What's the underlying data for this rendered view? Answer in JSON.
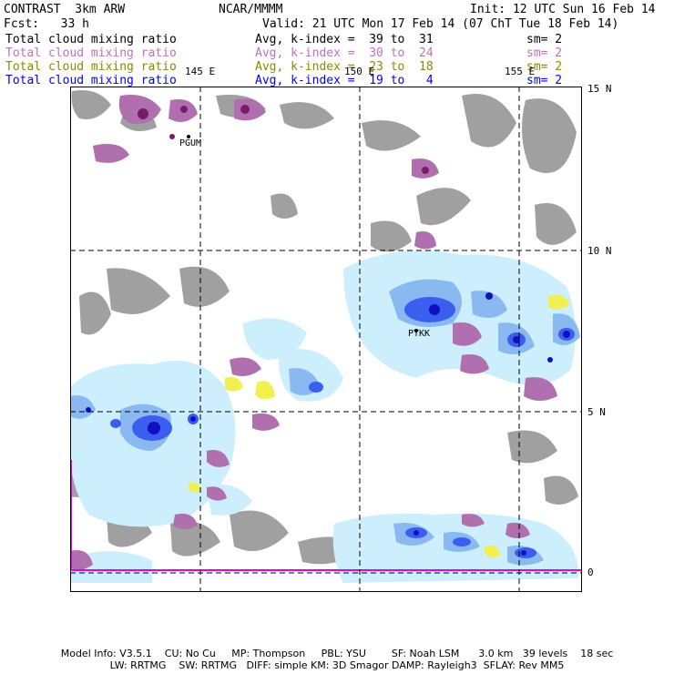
{
  "header": {
    "model": "CONTRAST  3km ARW",
    "forecast": "Fcst:   33 h",
    "org": "NCAR/MMMM",
    "init": "Init: 12 UTC Sun 16 Feb 14",
    "valid": "Valid: 21 UTC Mon 17 Feb 14 (07 ChT Tue 18 Feb 14)"
  },
  "legend": [
    {
      "field": "Total cloud mixing ratio",
      "range": "Avg, k-index =  39 to  31",
      "smooth": "sm= 2",
      "color": "#000000"
    },
    {
      "field": "Total cloud mixing ratio",
      "range": "Avg, k-index =  30 to  24",
      "smooth": "sm= 2",
      "color": "#c070c0"
    },
    {
      "field": "Total cloud mixing ratio",
      "range": "Avg, k-index =  23 to  18",
      "smooth": "sm= 2",
      "color": "#8a8a00"
    },
    {
      "field": "Total cloud mixing ratio",
      "range": "Avg, k-index =  19 to   4",
      "smooth": "sm= 2",
      "color": "#0000ff"
    }
  ],
  "map": {
    "lon_labels": [
      "145 E",
      "150 E",
      "155 E"
    ],
    "lat_labels": [
      "15 N",
      "10 N",
      "5 N",
      "0"
    ],
    "stations": [
      "PGUM",
      "PTKK"
    ]
  },
  "colors": {
    "gray_cloud": "#a0a0a0",
    "purple_cloud": "#b070b0",
    "dark_purple": "#7a1a6a",
    "yellow_cloud": "#f0f050",
    "light_blue": "#cdeefc",
    "mid_blue": "#8ab8f0",
    "blue": "#3a5ef0",
    "dark_blue": "#1010c0",
    "equator_line": "#e000e0"
  },
  "footer": {
    "line1": "Model Info: V3.5.1    CU: No Cu     MP: Thompson     PBL: YSU        SF: Noah LSM      3.0 km   39 levels    18 sec",
    "line2": "LW: RRTMG    SW: RRTMG   DIFF: simple KM: 3D Smagor DAMP: Rayleigh3  SFLAY: Rev MM5"
  }
}
